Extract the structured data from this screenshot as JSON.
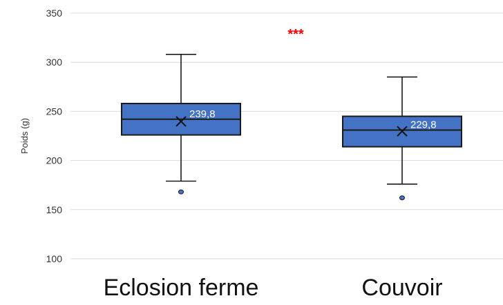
{
  "chart_data": {
    "type": "boxplot",
    "ylabel": "Poids (g)",
    "ylim": [
      100,
      350
    ],
    "yticks": [
      100,
      150,
      200,
      250,
      300,
      350
    ],
    "grid": "horizontal",
    "significance": "***",
    "categories": [
      "Eclosion ferme",
      "Couvoir"
    ],
    "boxes": [
      {
        "category": "Eclosion ferme",
        "min": 179,
        "q1": 226,
        "median": 242,
        "q3": 258,
        "max": 308,
        "mean": 239.8,
        "mean_label": "239,8",
        "outliers": [
          168
        ]
      },
      {
        "category": "Couvoir",
        "min": 176,
        "q1": 214,
        "median": 231,
        "q3": 245,
        "max": 285,
        "mean": 229.8,
        "mean_label": "229,8",
        "outliers": [
          162
        ]
      }
    ],
    "colors": {
      "box_fill": "#4472C4",
      "box_stroke": "#1a1a1a",
      "mean_label": "#ffffff",
      "significance": "#ff0000",
      "grid": "#d9d9d9"
    }
  }
}
